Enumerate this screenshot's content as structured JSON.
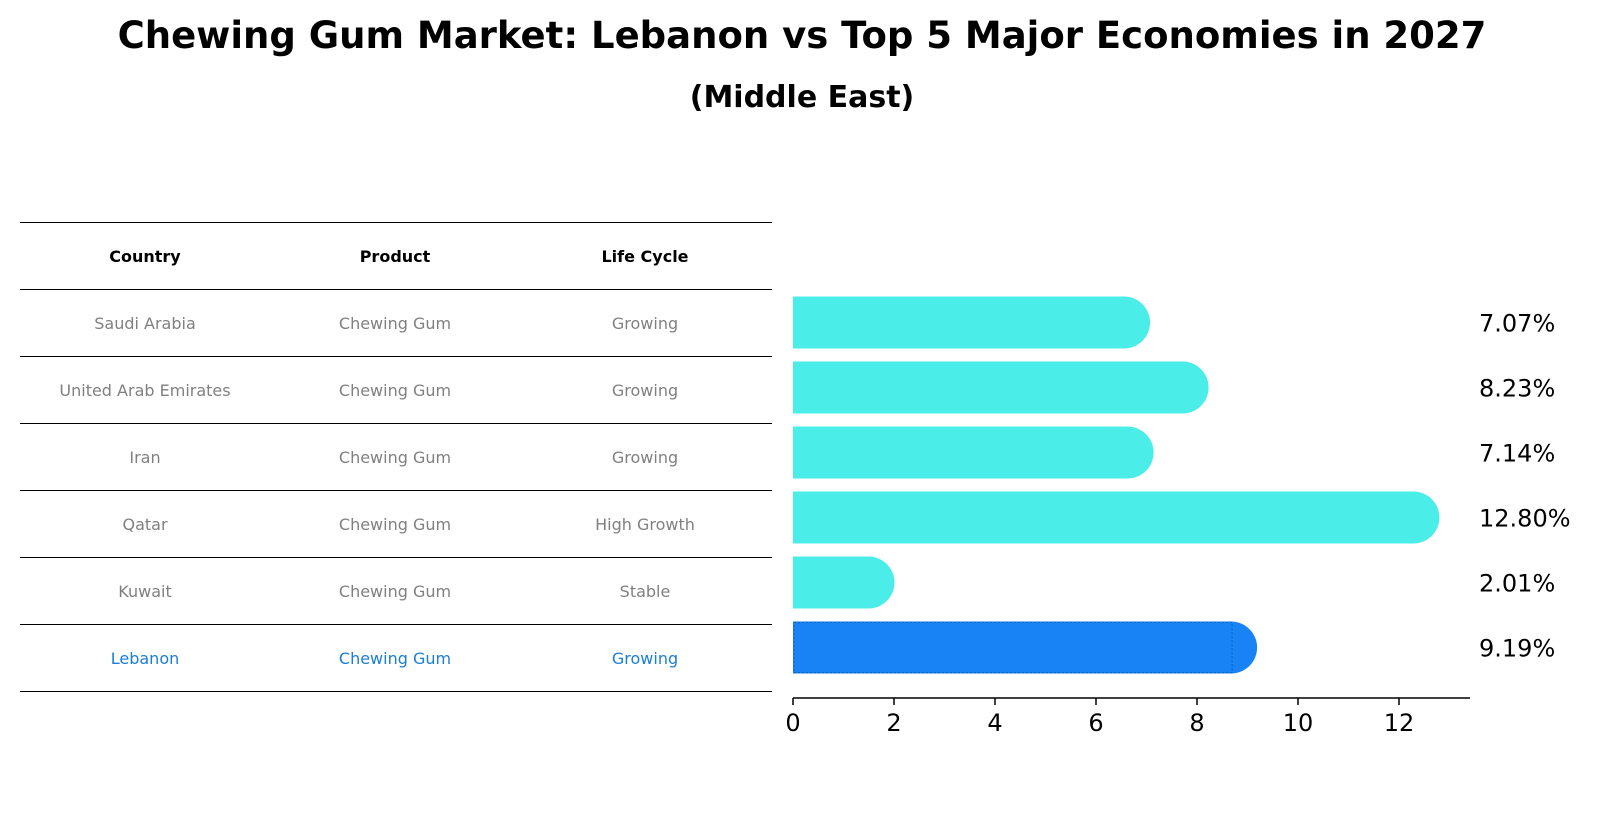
{
  "title": "Chewing Gum Market: Lebanon vs Top 5 Major Economies in 2027",
  "subtitle": "(Middle East)",
  "table": {
    "headers": [
      "Country",
      "Product",
      "Life Cycle"
    ],
    "rows": [
      {
        "country": "Saudi Arabia",
        "product": "Chewing Gum",
        "life_cycle": "Growing"
      },
      {
        "country": "United Arab Emirates",
        "product": "Chewing Gum",
        "life_cycle": "Growing"
      },
      {
        "country": "Iran",
        "product": "Chewing Gum",
        "life_cycle": "Growing"
      },
      {
        "country": "Qatar",
        "product": "Chewing Gum",
        "life_cycle": "High Growth"
      },
      {
        "country": "Kuwait",
        "product": "Chewing Gum",
        "life_cycle": "Stable"
      },
      {
        "country": "Lebanon",
        "product": "Chewing Gum",
        "life_cycle": "Growing"
      }
    ]
  },
  "colors": {
    "bar": "#4bede9",
    "highlight_bar": "#1783f4",
    "highlight_text": "#1a7dd8",
    "table_text": "#808080"
  },
  "chart_data": {
    "type": "bar",
    "orientation": "horizontal",
    "categories": [
      "Saudi Arabia",
      "United Arab Emirates",
      "Iran",
      "Qatar",
      "Kuwait",
      "Lebanon"
    ],
    "values": [
      7.07,
      8.23,
      7.14,
      12.8,
      2.01,
      9.19
    ],
    "value_labels": [
      "7.07%",
      "8.23%",
      "7.14%",
      "12.80%",
      "2.01%",
      "9.19%"
    ],
    "highlight": "Lebanon",
    "xlim": [
      0,
      13.5
    ],
    "xticks": [
      0,
      2,
      4,
      6,
      8,
      10,
      12
    ],
    "grid": false
  }
}
